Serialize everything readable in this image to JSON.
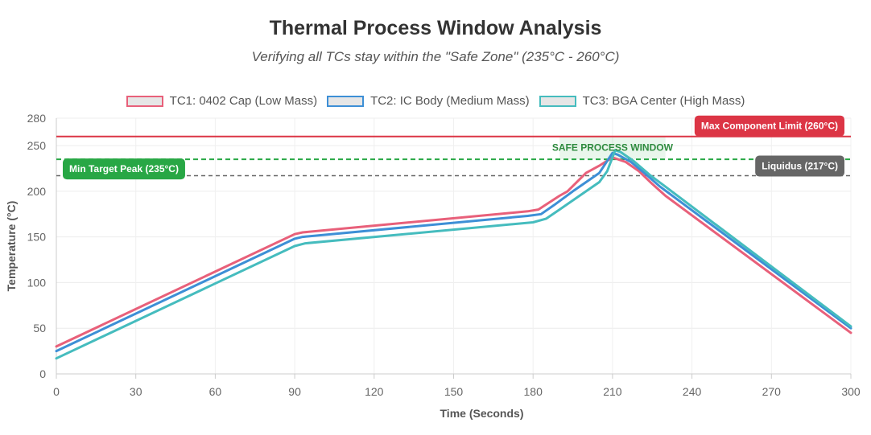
{
  "title": "Thermal Process Window Analysis",
  "subtitle": "Verifying all TCs stay within the \"Safe Zone\" (235°C - 260°C)",
  "chart_data": {
    "type": "line",
    "xlabel": "Time (Seconds)",
    "ylabel": "Temperature (°C)",
    "xlim": [
      0,
      300
    ],
    "ylim": [
      0,
      280
    ],
    "x_ticks": [
      0,
      30,
      60,
      90,
      120,
      150,
      180,
      210,
      240,
      270,
      300
    ],
    "y_ticks": [
      0,
      50,
      100,
      150,
      200,
      250,
      280
    ],
    "grid": true,
    "legend_position": "top",
    "series": [
      {
        "name": "TC1: 0402 Cap (Low Mass)",
        "color": "#e8607a",
        "points": [
          [
            0,
            30
          ],
          [
            90,
            153
          ],
          [
            93,
            155
          ],
          [
            178,
            178
          ],
          [
            182,
            180
          ],
          [
            190,
            195
          ],
          [
            193,
            200
          ],
          [
            200,
            220
          ],
          [
            205,
            228
          ],
          [
            210,
            237
          ],
          [
            215,
            232
          ],
          [
            220,
            222
          ],
          [
            225,
            208
          ],
          [
            230,
            195
          ],
          [
            300,
            45
          ]
        ]
      },
      {
        "name": "TC2: IC Body (Medium Mass)",
        "color": "#3d8fd6",
        "points": [
          [
            0,
            25
          ],
          [
            90,
            148
          ],
          [
            93,
            150
          ],
          [
            178,
            173
          ],
          [
            183,
            175
          ],
          [
            188,
            185
          ],
          [
            195,
            200
          ],
          [
            205,
            220
          ],
          [
            210,
            242
          ],
          [
            212,
            240
          ],
          [
            217,
            232
          ],
          [
            222,
            220
          ],
          [
            228,
            205
          ],
          [
            300,
            50
          ]
        ]
      },
      {
        "name": "TC3: BGA Center (High Mass)",
        "color": "#45bcbe",
        "points": [
          [
            0,
            17
          ],
          [
            90,
            140
          ],
          [
            94,
            143
          ],
          [
            180,
            166
          ],
          [
            185,
            170
          ],
          [
            190,
            180
          ],
          [
            200,
            200
          ],
          [
            205,
            210
          ],
          [
            208,
            222
          ],
          [
            211,
            245
          ],
          [
            213,
            243
          ],
          [
            218,
            233
          ],
          [
            224,
            218
          ],
          [
            230,
            205
          ],
          [
            300,
            52
          ]
        ]
      }
    ],
    "annotations": [
      {
        "type": "line",
        "value": 260,
        "label": "Max Component Limit (260°C)",
        "color": "#dc3545",
        "style": "solid",
        "label_position": "right"
      },
      {
        "type": "line",
        "value": 235,
        "label": "Min Target Peak (235°C)",
        "color": "#28a745",
        "style": "dashed",
        "label_position": "left"
      },
      {
        "type": "line",
        "value": 217,
        "label": "Liquidus (217°C)",
        "color": "#666666",
        "style": "dashed",
        "label_position": "right"
      },
      {
        "type": "box",
        "x_range": [
          190,
          230
        ],
        "y_range": [
          235,
          260
        ],
        "label": "SAFE PROCESS WINDOW",
        "color": "#28a745"
      }
    ]
  }
}
